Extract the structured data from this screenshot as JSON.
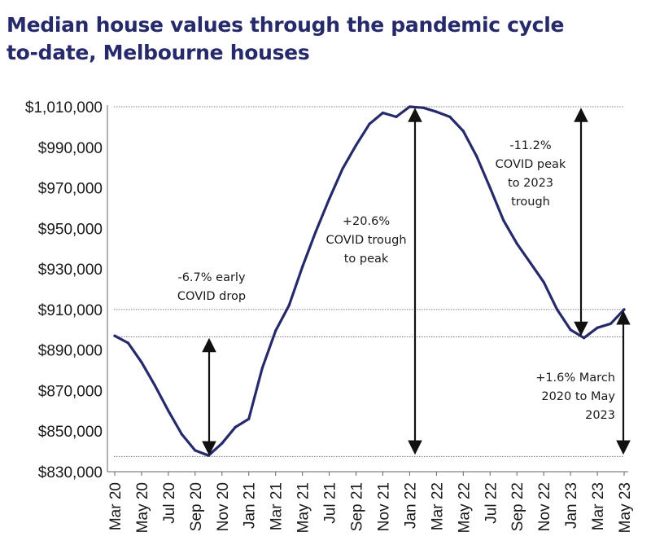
{
  "title_lines": [
    "Median house values through the pandemic cycle",
    "to-date, Melbourne houses"
  ],
  "colors": {
    "title": "#262a6b",
    "line": "#262a6b",
    "arrow": "#111111",
    "reference": "#555555",
    "axis": "#666666"
  },
  "chart_data": {
    "type": "line",
    "title": "Median house values through the pandemic cycle to-date, Melbourne houses",
    "xlabel": "",
    "ylabel": "",
    "ylim": [
      830000,
      1010000
    ],
    "y_ticks": [
      830000,
      850000,
      870000,
      890000,
      910000,
      930000,
      950000,
      970000,
      990000,
      1010000
    ],
    "y_tick_labels": [
      "$830,000",
      "$850,000",
      "$870,000",
      "$890,000",
      "$910,000",
      "$930,000",
      "$950,000",
      "$970,000",
      "$990,000",
      "$1,010,000"
    ],
    "x_tick_labels": [
      "Mar 20",
      "May 20",
      "Jul 20",
      "Sep 20",
      "Nov 20",
      "Jan 21",
      "Mar 21",
      "May 21",
      "Jul 21",
      "Sep 21",
      "Nov 21",
      "Jan 22",
      "Mar 22",
      "May 22",
      "Jul 22",
      "Sep 22",
      "Nov 22",
      "Jan 23",
      "Mar 23",
      "May 23"
    ],
    "x": [
      "Mar 20",
      "Apr 20",
      "May 20",
      "Jun 20",
      "Jul 20",
      "Aug 20",
      "Sep 20",
      "Oct 20",
      "Nov 20",
      "Dec 20",
      "Jan 21",
      "Feb 21",
      "Mar 21",
      "Apr 21",
      "May 21",
      "Jun 21",
      "Jul 21",
      "Aug 21",
      "Sep 21",
      "Oct 21",
      "Nov 21",
      "Dec 21",
      "Jan 22",
      "Feb 22",
      "Mar 22",
      "Apr 22",
      "May 22",
      "Jun 22",
      "Jul 22",
      "Aug 22",
      "Sep 22",
      "Oct 22",
      "Nov 22",
      "Dec 22",
      "Jan 23",
      "Feb 23",
      "Mar 23",
      "Apr 23",
      "May 23"
    ],
    "series": [
      {
        "values": [
          897000,
          893500,
          884000,
          872500,
          860000,
          848500,
          840500,
          838000,
          844000,
          852000,
          856000,
          881000,
          899500,
          912000,
          931000,
          948500,
          964500,
          979500,
          991000,
          1001500,
          1007000,
          1005000,
          1010000,
          1009500,
          1007500,
          1005000,
          998000,
          985500,
          970000,
          954000,
          942500,
          933000,
          923500,
          910000,
          900000,
          896000,
          901000,
          903000,
          910000
        ]
      }
    ],
    "reference_lines": [
      1010000,
      910000,
      896500,
      837500
    ],
    "grid": false,
    "annotations": [
      {
        "id": "early-drop",
        "lines": [
          "-6.7% early",
          "COVID drop"
        ]
      },
      {
        "id": "trough-to-peak",
        "lines": [
          "+20.6%",
          "COVID trough",
          "to peak"
        ]
      },
      {
        "id": "peak-to-trough",
        "lines": [
          "-11.2%",
          "COVID peak",
          "to 2023",
          "trough"
        ]
      },
      {
        "id": "march-to-may",
        "lines": [
          "+1.6% March",
          "2020 to May",
          "2023"
        ]
      }
    ]
  }
}
